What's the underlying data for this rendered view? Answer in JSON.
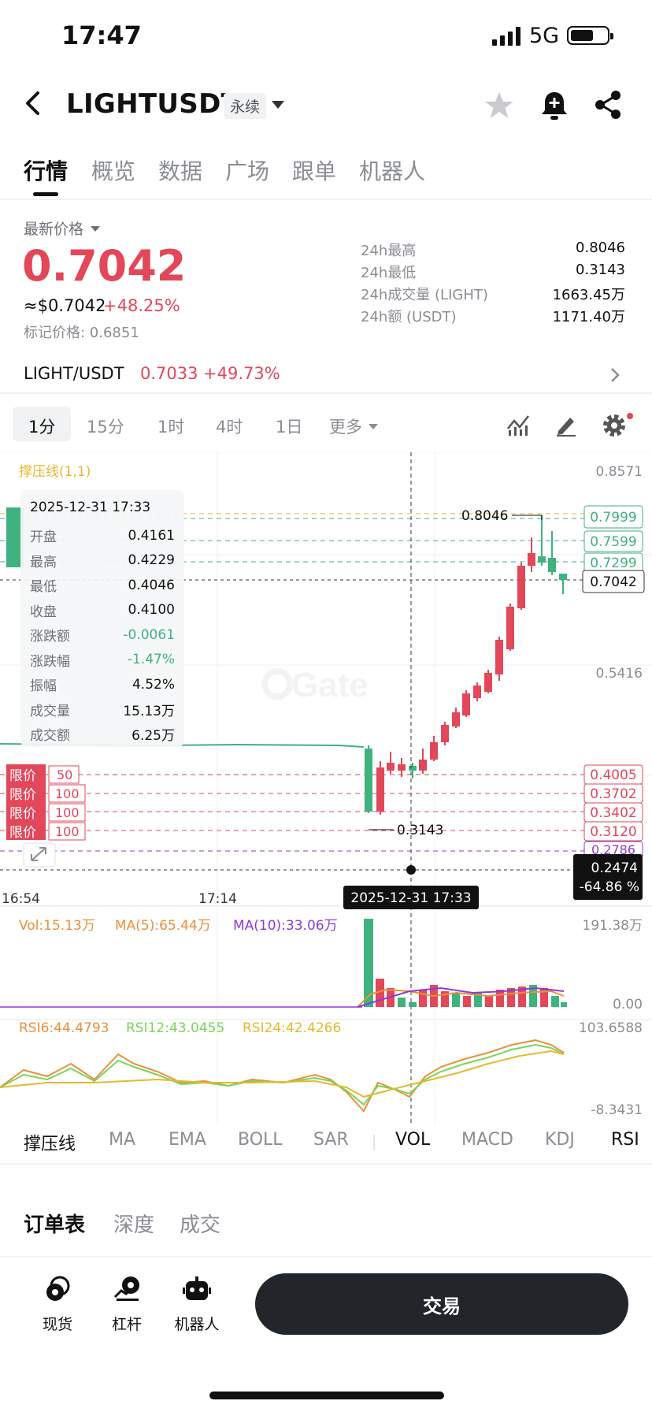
{
  "status_bar": {
    "time": "17:47",
    "network": "5G"
  },
  "header": {
    "pair": "LIGHTUSDT",
    "badge": "永续"
  },
  "tabs": [
    {
      "label": "行情",
      "active": true
    },
    {
      "label": "概览"
    },
    {
      "label": "数据"
    },
    {
      "label": "广场"
    },
    {
      "label": "跟单"
    },
    {
      "label": "机器人"
    }
  ],
  "price": {
    "latest_label": "最新价格",
    "last": "0.7042",
    "usd_approx": "≈$0.7042",
    "change_pct": "+48.25%",
    "mark_price": "标记价格: 0.6851"
  },
  "stats": [
    {
      "label": "24h最高",
      "value": "0.8046"
    },
    {
      "label": "24h最低",
      "value": "0.3143"
    },
    {
      "label": "24h成交量 (LIGHT)",
      "value": "1663.45万"
    },
    {
      "label": "24h额 (USDT)",
      "value": "1171.40万"
    }
  ],
  "spot_row": {
    "label": "LIGHT/USDT",
    "price": "0.7033",
    "change": "+49.73%"
  },
  "intervals": [
    "1分",
    "15分",
    "1时",
    "4时",
    "1日",
    "更多"
  ],
  "chart": {
    "overlay_label": "撑压线(1,1)",
    "watermark": "Gate",
    "y_ticks": [
      "0.8571",
      "0.5416"
    ],
    "high_marker": "0.8046",
    "low_marker": "0.3143",
    "current_price_tag": "0.7042",
    "resistance_tags": [
      "0.7999",
      "0.7599",
      "0.7299"
    ],
    "limit_price_tags": [
      "0.4005",
      "0.3702",
      "0.3402",
      "0.3120",
      "0.2786"
    ],
    "limit_orders": [
      {
        "label": "限价",
        "qty": "50"
      },
      {
        "label": "限价",
        "qty": "100"
      },
      {
        "label": "限价",
        "qty": "100"
      },
      {
        "label": "限价",
        "qty": "100"
      }
    ],
    "left_tag_label": "限价",
    "cursor_price": "0.2474",
    "cursor_pct": "-64.86 %",
    "x_ticks": [
      "16:54",
      "17:14"
    ],
    "cursor_time": "2025-12-31 17:33",
    "volume": {
      "vol": "Vol:15.13万",
      "ma5": "MA(5):65.44万",
      "ma10": "MA(10):33.06万",
      "max": "191.38万",
      "min": "0.00"
    },
    "rsi": {
      "rsi6": "RSI6:44.4793",
      "rsi12": "RSI12:43.0455",
      "rsi24": "RSI24:42.4266",
      "max": "103.6588",
      "min": "-8.3431"
    }
  },
  "tooltip": {
    "date": "2025-12-31 17:33",
    "rows": [
      {
        "k": "开盘",
        "v": "0.4161"
      },
      {
        "k": "最高",
        "v": "0.4229"
      },
      {
        "k": "最低",
        "v": "0.4046"
      },
      {
        "k": "收盘",
        "v": "0.4100"
      },
      {
        "k": "涨跌额",
        "v": "-0.0061"
      },
      {
        "k": "涨跌幅",
        "v": "-1.47%"
      },
      {
        "k": "振幅",
        "v": "4.52%"
      },
      {
        "k": "成交量",
        "v": "15.13万"
      },
      {
        "k": "成交额",
        "v": "6.25万"
      }
    ]
  },
  "indicators": [
    "撑压线",
    "MA",
    "EMA",
    "BOLL",
    "SAR",
    "VOL",
    "MACD",
    "KDJ",
    "RSI"
  ],
  "order_tabs": [
    "订单表",
    "深度",
    "成交"
  ],
  "bottom_nav": [
    {
      "label": "现货",
      "icon": "spot-icon"
    },
    {
      "label": "杠杆",
      "icon": "margin-icon"
    },
    {
      "label": "机器人",
      "icon": "robot-icon"
    }
  ],
  "trade_button": "交易",
  "colors": {
    "up": "#e2475a",
    "down": "#3fb27f",
    "ma5": "#e8913a",
    "ma10": "#8e3ad6",
    "rsi24": "#e5b92b"
  },
  "chart_data": {
    "type": "candlestick",
    "series_note": "",
    "candles_estimate": [
      {
        "o": 0.5,
        "h": 0.5,
        "l": 0.5,
        "c": 0.5
      }
    ]
  }
}
